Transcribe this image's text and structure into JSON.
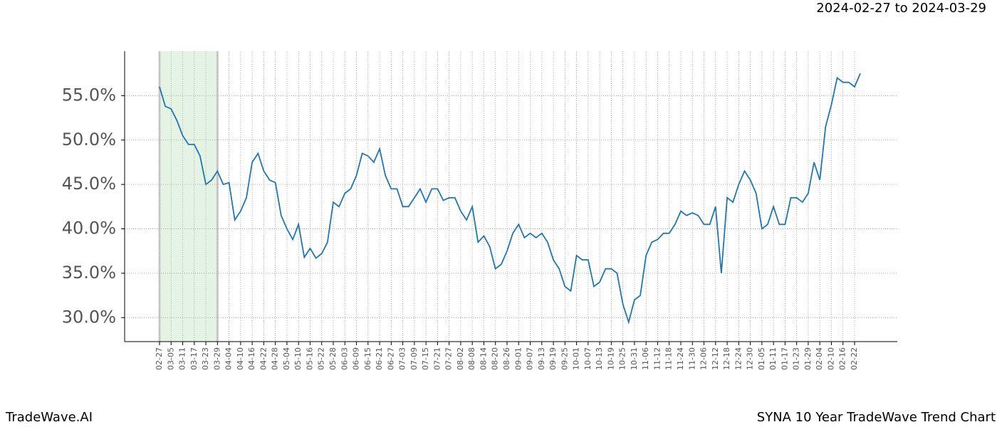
{
  "chart_data": {
    "type": "line",
    "title": "2024-02-27 to 2024-03-29",
    "footer_left": "TradeWave.AI",
    "footer_right": "SYNA 10 Year TradeWave Trend Chart",
    "categories": [
      "02-27",
      null,
      "03-05",
      null,
      "03-11",
      null,
      "03-17",
      null,
      "03-23",
      null,
      "03-29",
      null,
      "04-04",
      null,
      "04-10",
      null,
      "04-16",
      null,
      "04-22",
      null,
      "04-28",
      null,
      "05-04",
      null,
      "05-10",
      null,
      "05-16",
      null,
      "05-22",
      null,
      "05-28",
      null,
      "06-03",
      null,
      "06-09",
      null,
      "06-15",
      null,
      "06-21",
      null,
      "06-27",
      null,
      "07-03",
      null,
      "07-09",
      null,
      "07-15",
      null,
      "07-21",
      null,
      "07-27",
      null,
      "08-02",
      null,
      "08-08",
      null,
      "08-14",
      null,
      "08-20",
      null,
      "08-26",
      null,
      "09-01",
      null,
      "09-07",
      null,
      "09-13",
      null,
      "09-19",
      null,
      "09-25",
      null,
      "10-01",
      null,
      "10-07",
      null,
      "10-13",
      null,
      "10-19",
      null,
      "10-25",
      null,
      "10-31",
      null,
      "11-06",
      null,
      "11-12",
      null,
      "11-18",
      null,
      "11-24",
      null,
      "11-30",
      null,
      "12-06",
      null,
      "12-12",
      null,
      "12-18",
      null,
      "12-24",
      null,
      "12-30",
      null,
      "01-05",
      null,
      "01-11",
      null,
      "01-17",
      null,
      "01-23",
      null,
      "01-29",
      null,
      "02-04",
      null,
      "02-10",
      null,
      "02-16",
      null,
      "02-22",
      null
    ],
    "series": [
      {
        "name": "SYNA",
        "color": "#1f77b4",
        "values": [
          56.0,
          53.8,
          53.5,
          52.2,
          50.5,
          49.5,
          49.5,
          48.2,
          45.0,
          45.5,
          46.5,
          45.0,
          45.2,
          41.0,
          42.0,
          43.5,
          47.5,
          48.5,
          46.5,
          45.5,
          45.2,
          41.5,
          40.0,
          38.8,
          40.5,
          36.8,
          37.8,
          36.7,
          37.2,
          38.5,
          43.0,
          42.5,
          44.0,
          44.5,
          46.0,
          48.5,
          48.2,
          47.5,
          49.0,
          46.0,
          44.5,
          44.5,
          42.5,
          42.5,
          43.5,
          44.5,
          43.0,
          44.5,
          44.5,
          43.2,
          43.5,
          43.5,
          42.0,
          41.0,
          42.5,
          38.5,
          39.2,
          38.0,
          35.5,
          36.0,
          37.5,
          39.5,
          40.5,
          39.0,
          39.5,
          39.0,
          39.5,
          38.5,
          36.5,
          35.5,
          33.5,
          33.0,
          37.0,
          36.5,
          36.5,
          33.5,
          34.0,
          35.5,
          35.5,
          35.0,
          31.5,
          29.5,
          32.0,
          32.5,
          37.0,
          38.5,
          38.8,
          39.5,
          39.5,
          40.5,
          42.0,
          41.5,
          41.8,
          41.5,
          40.5,
          40.5,
          42.5,
          35.0,
          43.5,
          43.0,
          45.0,
          46.5,
          45.5,
          44.0,
          40.0,
          40.5,
          42.5,
          40.5,
          40.5,
          43.5,
          43.5,
          43.0,
          44.0,
          47.5,
          45.5,
          51.5,
          54.0,
          57.0,
          56.5,
          56.5,
          56.0,
          57.5
        ]
      }
    ],
    "ylim": [
      27.3,
      60.0
    ],
    "yticks": [
      {
        "value": 30,
        "label": "30.0%"
      },
      {
        "value": 35,
        "label": "35.0%"
      },
      {
        "value": 40,
        "label": "40.0%"
      },
      {
        "value": 45,
        "label": "45.0%"
      },
      {
        "value": 50,
        "label": "50.0%"
      },
      {
        "value": 55,
        "label": "55.0%"
      }
    ],
    "shade": [
      "02-27",
      "03-29"
    ],
    "grid": true
  }
}
